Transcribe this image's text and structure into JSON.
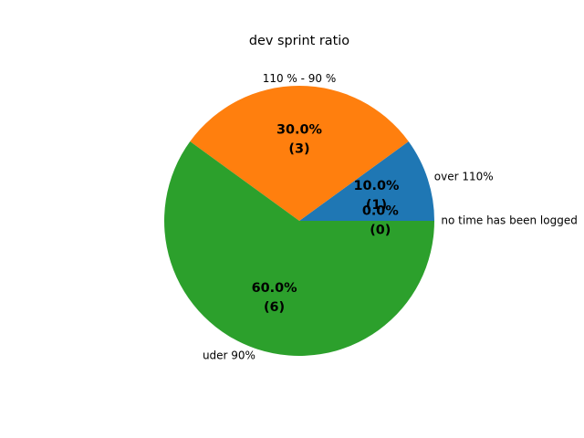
{
  "chart_data": {
    "type": "pie",
    "title": "dev sprint ratio",
    "slices": [
      {
        "label": "no time has been logged",
        "value": 0,
        "percent_label": "0.0%",
        "count_label": "(0)",
        "color": "#1f77b4"
      },
      {
        "label": "over 110%",
        "value": 1,
        "percent_label": "10.0%",
        "count_label": "(1)",
        "color": "#1f77b4"
      },
      {
        "label": "110 % - 90 %",
        "value": 3,
        "percent_label": "30.0%",
        "count_label": "(3)",
        "color": "#ff7f0e"
      },
      {
        "label": "uder 90%",
        "value": 6,
        "percent_label": "60.0%",
        "count_label": "(6)",
        "color": "#2ca02c"
      }
    ],
    "start_angle_deg": 0,
    "direction": "counterclockwise",
    "legend": "none"
  }
}
